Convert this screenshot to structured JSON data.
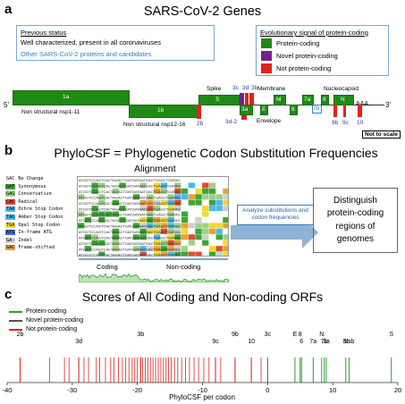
{
  "panel_a": {
    "letter": "a",
    "title": "SARS-CoV-2 Genes",
    "status_box": {
      "heading": "Previous status",
      "line1": "Well characterized, present in all coronaviruses",
      "line2": "Other SARS-CoV-2 proteins and candidates"
    },
    "legend_box": {
      "heading": "Evolutionary signal of protein-coding",
      "items": [
        {
          "label": "Protein-coding",
          "color": "#1f8a14"
        },
        {
          "label": "Novel protein-coding",
          "color": "#7a1f8a"
        },
        {
          "label": "Not protein-coding",
          "color": "#e0231c"
        }
      ]
    },
    "five_prime": "5'",
    "three_prime": "3'",
    "tail": "AAA...",
    "genes": {
      "1a": "1a",
      "1b": "1b",
      "S": "S",
      "3a": "3a",
      "E": "E",
      "M": "M",
      "6": "6",
      "7a": "7a",
      "7b": "7b",
      "8": "8",
      "N": "N"
    },
    "labels": {
      "nsp1_11": "Non structural nsp1-11",
      "nsp12_16": "Non structural nsp12-16",
      "spike": "Spike",
      "membrane": "Membrane",
      "nucleocapsid": "Nucleocapsid",
      "envelope": "Envelope",
      "g2b": "2b",
      "g3c": "3c",
      "g3d": "3d",
      "g3b": "3b",
      "g3d2": "3d-2",
      "g9b": "9b",
      "g9c": "9c",
      "g10": "10",
      "not_to_scale": "Not to scale"
    }
  },
  "panel_b": {
    "letter": "b",
    "title": "PhyloCSF = Phylogenetic Codon Substitution Frequencies",
    "alignment_title": "Alignment",
    "codon_key": [
      {
        "code": "GAC",
        "label": "No Change",
        "color": "#ffffff"
      },
      {
        "code": "GAT",
        "label": "Synonymous",
        "color": "#3fa535"
      },
      {
        "code": "GAG",
        "label": "Conservative",
        "color": "#9fd18a"
      },
      {
        "code": "CAC",
        "label": "Radical",
        "color": "#e34a33"
      },
      {
        "code": "TAA",
        "label": "Ochre Stop Codon",
        "color": "#4db8e8"
      },
      {
        "code": "TAG",
        "label": "Amber Stop Codon",
        "color": "#4db8e8"
      },
      {
        "code": "TGA",
        "label": "Opal Stop Codon",
        "color": "#f2d930"
      },
      {
        "code": "ATG",
        "label": "In-frame ATG",
        "color": "#3f6fd1"
      },
      {
        "code": "GA-",
        "label": "Indel",
        "color": "#cfcfcf"
      },
      {
        "code": "GAC",
        "label": "Frame-shifted",
        "color": "#e8a23a"
      }
    ],
    "coding_label": "Coding",
    "noncoding_label": "Non-coding",
    "analyze_text": "Analyze substitutions and codon frequencies",
    "distinguish_text": "Distinguish protein-coding regions of genomes"
  },
  "panel_c": {
    "letter": "c",
    "title": "Scores of All Coding and Non-coding ORFs",
    "legend": [
      {
        "label": "Protein-coding",
        "color": "#2e9e2e"
      },
      {
        "label": "Novel protein-coding",
        "color": "#555555"
      },
      {
        "label": "Not protein-coding",
        "color": "#e0231c"
      }
    ]
  },
  "chart_data": {
    "type": "scatter",
    "title": "Scores of All Coding and Non-coding ORFs",
    "xlabel": "PhyloCSF per codon",
    "xlim": [
      -40,
      20
    ],
    "xticks": [
      -40,
      -30,
      -20,
      -10,
      0,
      10,
      20
    ],
    "labeled_orfs": [
      {
        "name": "2b",
        "x": -38.0,
        "class": "not"
      },
      {
        "name": "3d",
        "x": -29.0,
        "class": "not"
      },
      {
        "name": "3b",
        "x": -19.5,
        "class": "not"
      },
      {
        "name": "9c",
        "x": -8.0,
        "class": "not"
      },
      {
        "name": "9b",
        "x": -5.0,
        "class": "not"
      },
      {
        "name": "10",
        "x": -2.5,
        "class": "not"
      },
      {
        "name": "3c",
        "x": 0.0,
        "class": "novel"
      },
      {
        "name": "E",
        "x": 4.2,
        "class": "coding"
      },
      {
        "name": "6",
        "x": 5.2,
        "class": "coding"
      },
      {
        "name": "8",
        "x": 5.0,
        "class": "coding"
      },
      {
        "name": "7a",
        "x": 7.0,
        "class": "coding"
      },
      {
        "name": "N",
        "x": 8.3,
        "class": "coding"
      },
      {
        "name": "7b",
        "x": 8.7,
        "class": "coding"
      },
      {
        "name": "3a",
        "x": 9.0,
        "class": "coding"
      },
      {
        "name": "M",
        "x": 12.0,
        "class": "coding"
      },
      {
        "name": "1ab",
        "x": 12.5,
        "class": "coding"
      },
      {
        "name": "S",
        "x": 19.0,
        "class": "coding"
      }
    ],
    "not_coding_scores": [
      -38.0,
      -33.5,
      -31.2,
      -30.5,
      -29.0,
      -28.2,
      -27.5,
      -26.3,
      -25.8,
      -24.9,
      -24.1,
      -23.6,
      -22.9,
      -22.3,
      -21.8,
      -21.3,
      -20.8,
      -20.4,
      -20.0,
      -19.5,
      -19.2,
      -18.8,
      -18.4,
      -18.0,
      -17.6,
      -17.2,
      -16.8,
      -16.4,
      -16.0,
      -15.6,
      -15.2,
      -14.8,
      -14.3,
      -13.8,
      -13.2,
      -12.6,
      -12.0,
      -11.3,
      -10.6,
      -9.8,
      -9.0,
      -8.0,
      -7.2,
      -5.0,
      -2.5,
      -1.0
    ]
  }
}
